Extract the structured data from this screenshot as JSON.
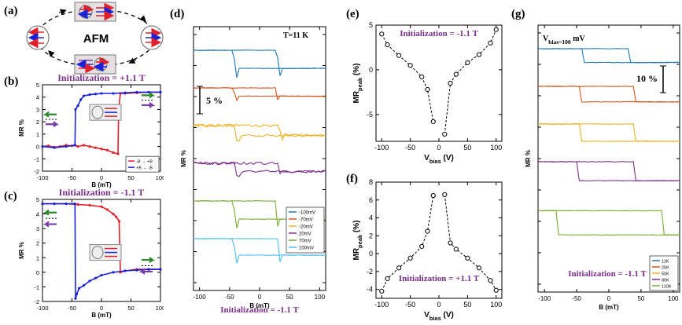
{
  "panel_labels": {
    "a": "(a)",
    "b": "(b)",
    "c": "(c)",
    "d": "(d)",
    "e": "(e)",
    "f": "(f)",
    "g": "(g)"
  },
  "diagram_a": {
    "title": "AFM"
  },
  "chart_data": [
    {
      "id": "b",
      "type": "line",
      "title": "Initialization = +1.1 T",
      "xlabel": "B (mT)",
      "ylabel": "MR %",
      "xlim": [
        -100,
        100
      ],
      "ylim": [
        -2,
        5
      ],
      "xticks": [
        -100,
        -50,
        0,
        50,
        100
      ],
      "yticks": [
        -2,
        -1,
        0,
        1,
        2,
        3,
        4,
        5
      ],
      "legend": [
        "-B → +B",
        "+B → -B"
      ],
      "series": [
        {
          "name": "-B → +B",
          "color": "#e0202a",
          "x": [
            -100,
            -90,
            -80,
            -70,
            -60,
            -50,
            -45,
            -40,
            -30,
            -20,
            -10,
            0,
            10,
            20,
            28,
            29,
            32,
            40,
            60,
            80,
            100
          ],
          "y": [
            0.0,
            0.05,
            -0.05,
            0.0,
            0.1,
            0.05,
            0.1,
            0.0,
            0.1,
            0.0,
            -0.1,
            -0.2,
            -0.3,
            -0.5,
            -0.6,
            3.0,
            4.3,
            4.3,
            4.35,
            4.4,
            4.4
          ]
        },
        {
          "name": "+B → -B",
          "color": "#1a23d6",
          "x": [
            100,
            80,
            60,
            40,
            20,
            0,
            -10,
            -20,
            -30,
            -35,
            -40,
            -44,
            -45,
            -60,
            -80,
            -100
          ],
          "y": [
            4.4,
            4.4,
            4.4,
            4.35,
            4.3,
            4.3,
            4.25,
            4.2,
            4.1,
            3.8,
            3.3,
            3.0,
            0.1,
            0.0,
            -0.1,
            0.0
          ]
        }
      ]
    },
    {
      "id": "c",
      "type": "line",
      "title": "Initialization = -1.1 T",
      "xlabel": "B (mT)",
      "ylabel": "MR %",
      "xlim": [
        -100,
        100
      ],
      "ylim": [
        -2,
        5
      ],
      "xticks": [
        -100,
        -50,
        0,
        50,
        100
      ],
      "yticks": [
        -2,
        -1,
        0,
        1,
        2,
        3,
        4,
        5
      ],
      "series": [
        {
          "name": "red",
          "color": "#e0202a",
          "x": [
            -100,
            -80,
            -60,
            -40,
            -20,
            0,
            10,
            20,
            25,
            30,
            32,
            40,
            60,
            80,
            100
          ],
          "y": [
            4.7,
            4.7,
            4.7,
            4.65,
            4.6,
            4.5,
            4.3,
            4.0,
            3.8,
            3.5,
            0.0,
            0.1,
            0.2,
            0.2,
            0.2
          ]
        },
        {
          "name": "blue",
          "color": "#1a23d6",
          "x": [
            100,
            80,
            60,
            40,
            20,
            0,
            -10,
            -20,
            -30,
            -38,
            -42,
            -44,
            -45,
            -60,
            -80,
            -100
          ],
          "y": [
            0.2,
            0.2,
            0.15,
            0.1,
            0.0,
            -0.2,
            -0.4,
            -0.6,
            -0.9,
            -1.1,
            -1.5,
            -1.8,
            4.7,
            4.7,
            4.7,
            4.7
          ]
        }
      ]
    },
    {
      "id": "d",
      "type": "line",
      "title": "T=11 K",
      "annotation": "Initialization = -1.1 T",
      "xlabel": "B (mT)",
      "ylabel": "MR %",
      "xlim": [
        -110,
        110
      ],
      "xticks": [
        -100,
        -50,
        0,
        50,
        100
      ],
      "scalebar": "5 %",
      "legend": [
        "-100mV",
        "-70mV",
        "-20mV",
        "20mV",
        "70mV",
        "100mV"
      ],
      "series": [
        {
          "name": "-100mV",
          "color": "#1f77b4",
          "offset": 0,
          "lo": -42,
          "hi": 32,
          "amp": 5.5
        },
        {
          "name": "-70mV",
          "color": "#d95319",
          "offset": 1,
          "lo": -42,
          "hi": 30,
          "amp": 2.5
        },
        {
          "name": "-20mV",
          "color": "#edb120",
          "offset": 2,
          "lo": -40,
          "hi": 35,
          "amp": 3.0
        },
        {
          "name": "20mV",
          "color": "#7e2f8e",
          "offset": 3,
          "lo": -40,
          "hi": 33,
          "amp": 2.5
        },
        {
          "name": "70mV",
          "color": "#77ac30",
          "offset": 4,
          "lo": -42,
          "hi": 30,
          "amp": 5.5
        },
        {
          "name": "100mV",
          "color": "#4dbeee",
          "offset": 5,
          "lo": -42,
          "hi": 33,
          "amp": 5.0
        }
      ]
    },
    {
      "id": "e",
      "type": "scatter",
      "title": "Initialization = -1.1 T",
      "xlabel": "V_bias (V)",
      "ylabel": "MR_peak (%)",
      "xlim": [
        -110,
        110
      ],
      "ylim": [
        -8,
        5
      ],
      "xticks": [
        -100,
        -50,
        0,
        50,
        100
      ],
      "yticks": [
        -5,
        0,
        5
      ],
      "x": [
        -100,
        -90,
        -70,
        -50,
        -30,
        -20,
        -10,
        10,
        20,
        30,
        50,
        70,
        90,
        100
      ],
      "y": [
        4.0,
        2.8,
        1.6,
        0.5,
        -0.8,
        -2.2,
        -5.8,
        -7.2,
        -1.5,
        -0.5,
        0.8,
        1.7,
        3.0,
        4.5
      ]
    },
    {
      "id": "f",
      "type": "scatter",
      "title": "Initialization = +1.1 T",
      "xlabel": "V_bias (V)",
      "ylabel": "MR_peak (%)",
      "xlim": [
        -110,
        110
      ],
      "ylim": [
        -5,
        8
      ],
      "xticks": [
        -100,
        -50,
        0,
        50,
        100
      ],
      "yticks": [
        -4,
        -2,
        0,
        2,
        4,
        6,
        8
      ],
      "x": [
        -100,
        -90,
        -70,
        -50,
        -30,
        -20,
        -10,
        10,
        20,
        30,
        50,
        70,
        90,
        100
      ],
      "y": [
        -4.2,
        -2.8,
        -1.6,
        -0.5,
        0.8,
        2.5,
        6.5,
        6.6,
        1.2,
        0.5,
        -0.5,
        -1.6,
        -3.0,
        -4.1
      ]
    },
    {
      "id": "g",
      "type": "line",
      "title": "V_bias=100 mV",
      "annotation": "Initialization = -1.1 T",
      "xlabel": "B (mT)",
      "ylabel": "MR %",
      "xlim": [
        -110,
        110
      ],
      "xticks": [
        -100,
        -50,
        0,
        50,
        100
      ],
      "scalebar": "10 %",
      "legend": [
        "11K",
        "20K",
        "50K",
        "80K",
        "110K"
      ],
      "series": [
        {
          "name": "11K",
          "color": "#1f77b4",
          "offset": 0,
          "lo": -42,
          "hi": 33,
          "amp": 4.0
        },
        {
          "name": "20K",
          "color": "#d95319",
          "offset": 1,
          "lo": -45,
          "hi": 42,
          "amp": 4.5
        },
        {
          "name": "50K",
          "color": "#edb120",
          "offset": 2,
          "lo": -45,
          "hi": 40,
          "amp": 5.0
        },
        {
          "name": "80K",
          "color": "#7e2f8e",
          "offset": 3,
          "lo": -48,
          "hi": 40,
          "amp": 5.5
        },
        {
          "name": "110K",
          "color": "#77ac30",
          "offset": 4.3,
          "lo": -80,
          "hi": 85,
          "amp": 7.0
        }
      ]
    }
  ]
}
